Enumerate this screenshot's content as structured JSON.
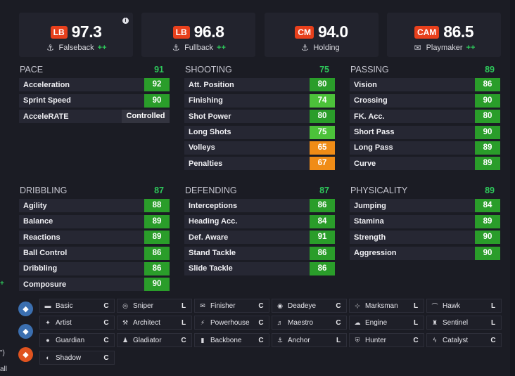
{
  "ratings": [
    {
      "pos": "LB",
      "value": "97.3",
      "role": "Falseback",
      "plus": "++",
      "icon": "anchor-icon",
      "glyph": "⚓"
    },
    {
      "pos": "LB",
      "value": "96.8",
      "role": "Fullback",
      "plus": "++",
      "icon": "anchor-icon",
      "glyph": "⚓"
    },
    {
      "pos": "CM",
      "value": "94.0",
      "role": "Holding",
      "plus": "",
      "icon": "anchor-icon",
      "glyph": "⚓"
    },
    {
      "pos": "CAM",
      "value": "86.5",
      "role": "Playmaker",
      "plus": "++",
      "icon": "envelope-icon",
      "glyph": "✉"
    }
  ],
  "info_glyph": "i",
  "groups": {
    "pace": {
      "title": "PACE",
      "value": "91",
      "stats": [
        {
          "name": "Acceleration",
          "value": "92"
        },
        {
          "name": "Sprint Speed",
          "value": "90"
        },
        {
          "name": "AcceleRATE",
          "value": "Controlled"
        }
      ]
    },
    "shooting": {
      "title": "SHOOTING",
      "value": "75",
      "stats": [
        {
          "name": "Att. Position",
          "value": "80"
        },
        {
          "name": "Finishing",
          "value": "74"
        },
        {
          "name": "Shot Power",
          "value": "80"
        },
        {
          "name": "Long Shots",
          "value": "75"
        },
        {
          "name": "Volleys",
          "value": "65"
        },
        {
          "name": "Penalties",
          "value": "67"
        }
      ]
    },
    "passing": {
      "title": "PASSING",
      "value": "89",
      "stats": [
        {
          "name": "Vision",
          "value": "86"
        },
        {
          "name": "Crossing",
          "value": "90"
        },
        {
          "name": "FK. Acc.",
          "value": "80"
        },
        {
          "name": "Short Pass",
          "value": "90"
        },
        {
          "name": "Long Pass",
          "value": "89"
        },
        {
          "name": "Curve",
          "value": "89"
        }
      ]
    },
    "dribbling": {
      "title": "DRIBBLING",
      "value": "87",
      "stats": [
        {
          "name": "Agility",
          "value": "88"
        },
        {
          "name": "Balance",
          "value": "89"
        },
        {
          "name": "Reactions",
          "value": "89"
        },
        {
          "name": "Ball Control",
          "value": "86"
        },
        {
          "name": "Dribbling",
          "value": "86"
        },
        {
          "name": "Composure",
          "value": "90"
        }
      ]
    },
    "defending": {
      "title": "DEFENDING",
      "value": "87",
      "stats": [
        {
          "name": "Interceptions",
          "value": "86"
        },
        {
          "name": "Heading Acc.",
          "value": "84"
        },
        {
          "name": "Def. Aware",
          "value": "91"
        },
        {
          "name": "Stand Tackle",
          "value": "86"
        },
        {
          "name": "Slide Tackle",
          "value": "86"
        }
      ]
    },
    "physicality": {
      "title": "PHYSICALITY",
      "value": "89",
      "stats": [
        {
          "name": "Jumping",
          "value": "84"
        },
        {
          "name": "Stamina",
          "value": "89"
        },
        {
          "name": "Strength",
          "value": "90"
        },
        {
          "name": "Aggression",
          "value": "90"
        }
      ]
    }
  },
  "colors": {
    "high": "#2a9d2a",
    "mid": "#4cc23a",
    "low": "#f08c16"
  },
  "playstyle_circles": [
    {
      "icon": "blue-diamond-icon",
      "color": "#3b6fb0",
      "glyph": "◆"
    },
    {
      "icon": "blue-diamond-icon",
      "color": "#3b6fb0",
      "glyph": "◆"
    },
    {
      "icon": "orange-diamond-icon",
      "color": "#e0531f",
      "glyph": "◆"
    }
  ],
  "playstyles": [
    {
      "name": "Basic",
      "tag": "C",
      "icon": "basic-icon",
      "glyph": "▬"
    },
    {
      "name": "Sniper",
      "tag": "L",
      "icon": "sniper-icon",
      "glyph": "◎"
    },
    {
      "name": "Finisher",
      "tag": "C",
      "icon": "finisher-icon",
      "glyph": "✉"
    },
    {
      "name": "Deadeye",
      "tag": "C",
      "icon": "deadeye-icon",
      "glyph": "◉"
    },
    {
      "name": "Marksman",
      "tag": "L",
      "icon": "marksman-icon",
      "glyph": "⊹"
    },
    {
      "name": "Hawk",
      "tag": "L",
      "icon": "hawk-icon",
      "glyph": "⌒"
    },
    {
      "name": "Artist",
      "tag": "C",
      "icon": "artist-icon",
      "glyph": "✦"
    },
    {
      "name": "Architect",
      "tag": "L",
      "icon": "architect-icon",
      "glyph": "⚒"
    },
    {
      "name": "Powerhouse",
      "tag": "C",
      "icon": "powerhouse-icon",
      "glyph": "⚡"
    },
    {
      "name": "Maestro",
      "tag": "C",
      "icon": "maestro-icon",
      "glyph": "♬"
    },
    {
      "name": "Engine",
      "tag": "L",
      "icon": "engine-icon",
      "glyph": "☁"
    },
    {
      "name": "Sentinel",
      "tag": "L",
      "icon": "sentinel-icon",
      "glyph": "♜"
    },
    {
      "name": "Guardian",
      "tag": "C",
      "icon": "guardian-icon",
      "glyph": "●"
    },
    {
      "name": "Gladiator",
      "tag": "C",
      "icon": "gladiator-icon",
      "glyph": "♟"
    },
    {
      "name": "Backbone",
      "tag": "C",
      "icon": "backbone-icon",
      "glyph": "▮"
    },
    {
      "name": "Anchor",
      "tag": "L",
      "icon": "anchor-icon",
      "glyph": "⚓"
    },
    {
      "name": "Hunter",
      "tag": "C",
      "icon": "hunter-icon",
      "glyph": "⛨"
    },
    {
      "name": "Catalyst",
      "tag": "C",
      "icon": "catalyst-icon",
      "glyph": "ϟ"
    },
    {
      "name": "Shadow",
      "tag": "C",
      "icon": "shadow-icon",
      "glyph": "◐"
    }
  ],
  "left_edge": {
    "mark": "+",
    "text1": "\")",
    "text2": "all"
  }
}
